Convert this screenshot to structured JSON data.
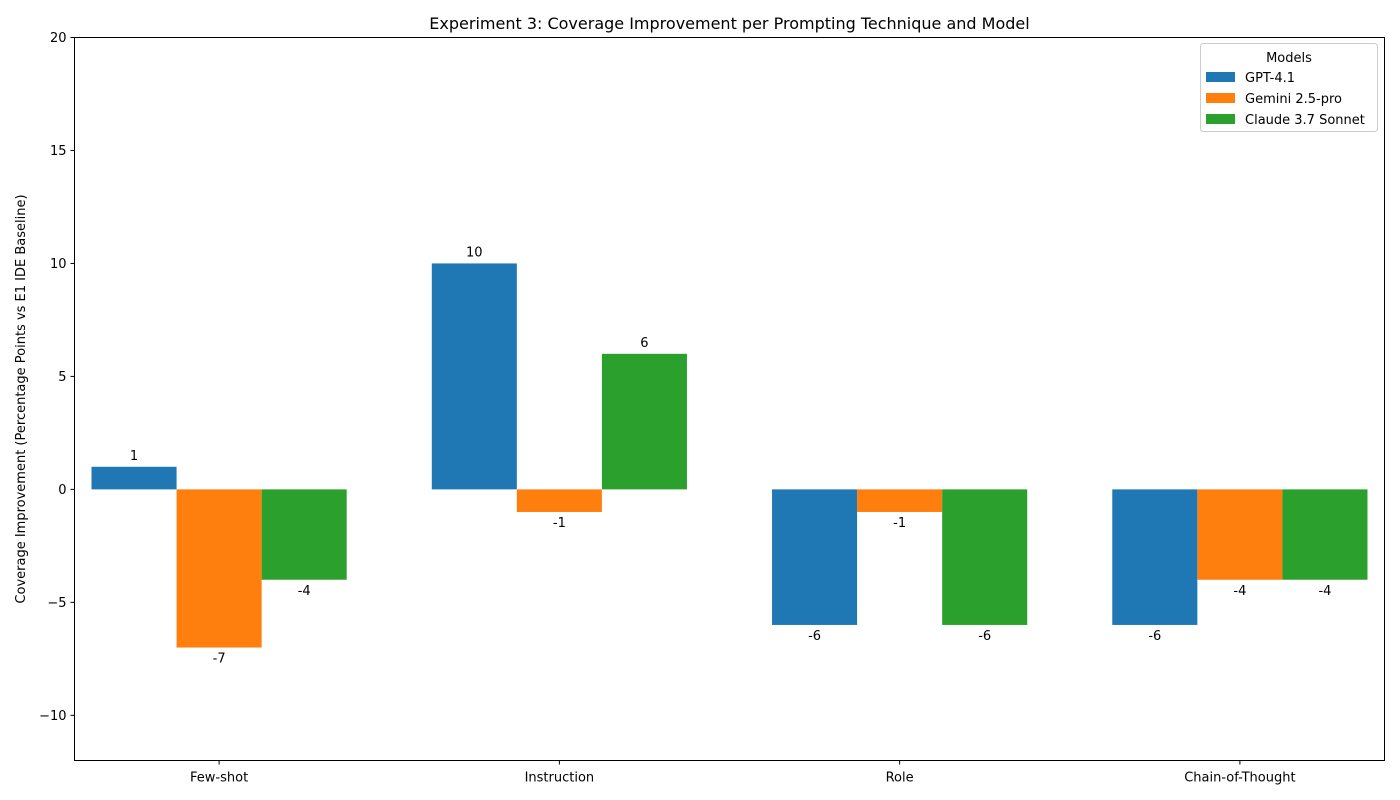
{
  "chart_data": {
    "type": "bar",
    "title": "Experiment 3: Coverage Improvement per Prompting Technique and Model",
    "xlabel": "",
    "ylabel": "Coverage Improvement (Percentage Points vs E1 IDE Baseline)",
    "categories": [
      "Few-shot",
      "Instruction",
      "Role",
      "Chain-of-Thought"
    ],
    "ylim": [
      -12,
      20
    ],
    "yticks": [
      -10,
      -5,
      0,
      5,
      10,
      15,
      20
    ],
    "ytick_labels": [
      "−10",
      "−5",
      "0",
      "5",
      "10",
      "15",
      "20"
    ],
    "legend_title": "Models",
    "legend_position": "top-right",
    "grid": false,
    "series": [
      {
        "name": "GPT-4.1",
        "color": "#1f77b4",
        "values": [
          1,
          10,
          -6,
          -6
        ],
        "labels": [
          "1",
          "10",
          "-6",
          "-6"
        ]
      },
      {
        "name": "Gemini 2.5-pro",
        "color": "#ff7f0e",
        "values": [
          -7,
          -1,
          -1,
          -4
        ],
        "labels": [
          "-7",
          "-1",
          "-1",
          "-4"
        ]
      },
      {
        "name": "Claude 3.7 Sonnet",
        "color": "#2ca02c",
        "values": [
          -4,
          6,
          -6,
          -4
        ],
        "labels": [
          "-4",
          "6",
          "-6",
          "-4"
        ]
      }
    ]
  }
}
